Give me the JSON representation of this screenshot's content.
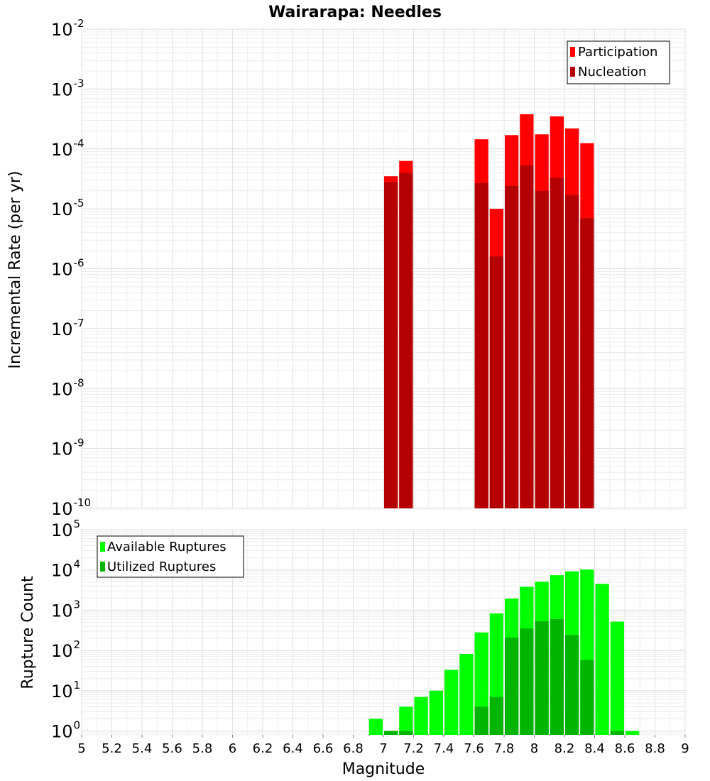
{
  "chart_data": [
    {
      "type": "bar",
      "title": "Wairarapa: Needles",
      "xlabel": "",
      "ylabel": "Incremental Rate (per yr)",
      "yscale": "log",
      "ylim": [
        1e-10,
        0.01
      ],
      "xlim": [
        5,
        9
      ],
      "grid": true,
      "legend_position": "top-right",
      "legend": [
        "Participation",
        "Nucleation"
      ],
      "colors": {
        "Participation": "#ff0000",
        "Nucleation": "#b40000"
      },
      "ytick_exponents": [
        "-10",
        "-9",
        "-8",
        "-7",
        "-6",
        "-5",
        "-4",
        "-3",
        "-2"
      ],
      "ytick_base": "10",
      "x": [
        7.05,
        7.15,
        7.65,
        7.75,
        7.85,
        7.95,
        8.05,
        8.15,
        8.25,
        8.35
      ],
      "series": [
        {
          "name": "Participation",
          "values": [
            3.5e-05,
            6.3e-05,
            0.000145,
            1e-05,
            0.00017,
            0.00038,
            0.000175,
            0.00035,
            0.00022,
            0.000125
          ]
        },
        {
          "name": "Nucleation",
          "values": [
            2.8e-05,
            4e-05,
            2.7e-05,
            1.6e-06,
            2.4e-05,
            5.3e-05,
            2e-05,
            3.3e-05,
            1.7e-05,
            7e-06
          ]
        }
      ]
    },
    {
      "type": "bar",
      "title": "",
      "xlabel": "Magnitude",
      "ylabel": "Rupture Count",
      "yscale": "log",
      "ylim": [
        0.8,
        100000
      ],
      "xlim": [
        5,
        9
      ],
      "grid": true,
      "legend_position": "top-left",
      "legend": [
        "Available Ruptures",
        "Utilized Ruptures"
      ],
      "colors": {
        "Available Ruptures": "#00ff00",
        "Utilized Ruptures": "#00b400"
      },
      "ytick_exponents": [
        "0",
        "1",
        "2",
        "3",
        "4",
        "5"
      ],
      "ytick_base": "10",
      "xticks": [
        "5",
        "5.2",
        "5.4",
        "5.6",
        "5.8",
        "6",
        "6.2",
        "6.4",
        "6.6",
        "6.8",
        "7",
        "7.2",
        "7.4",
        "7.6",
        "7.8",
        "8",
        "8.2",
        "8.4",
        "8.6",
        "8.8",
        "9"
      ],
      "x": [
        6.95,
        7.05,
        7.15,
        7.25,
        7.35,
        7.45,
        7.55,
        7.65,
        7.75,
        7.85,
        7.95,
        8.05,
        8.15,
        8.25,
        8.35,
        8.45,
        8.55,
        8.65
      ],
      "series": [
        {
          "name": "Available Ruptures",
          "values": [
            2,
            1,
            4,
            7,
            10,
            33,
            82,
            280,
            830,
            1950,
            3800,
            5100,
            7400,
            9200,
            10200,
            4500,
            520,
            1
          ]
        },
        {
          "name": "Utilized Ruptures",
          "values": [
            null,
            1,
            1,
            null,
            null,
            null,
            null,
            4,
            7,
            210,
            350,
            530,
            600,
            240,
            58,
            null,
            1,
            null
          ]
        }
      ]
    }
  ]
}
